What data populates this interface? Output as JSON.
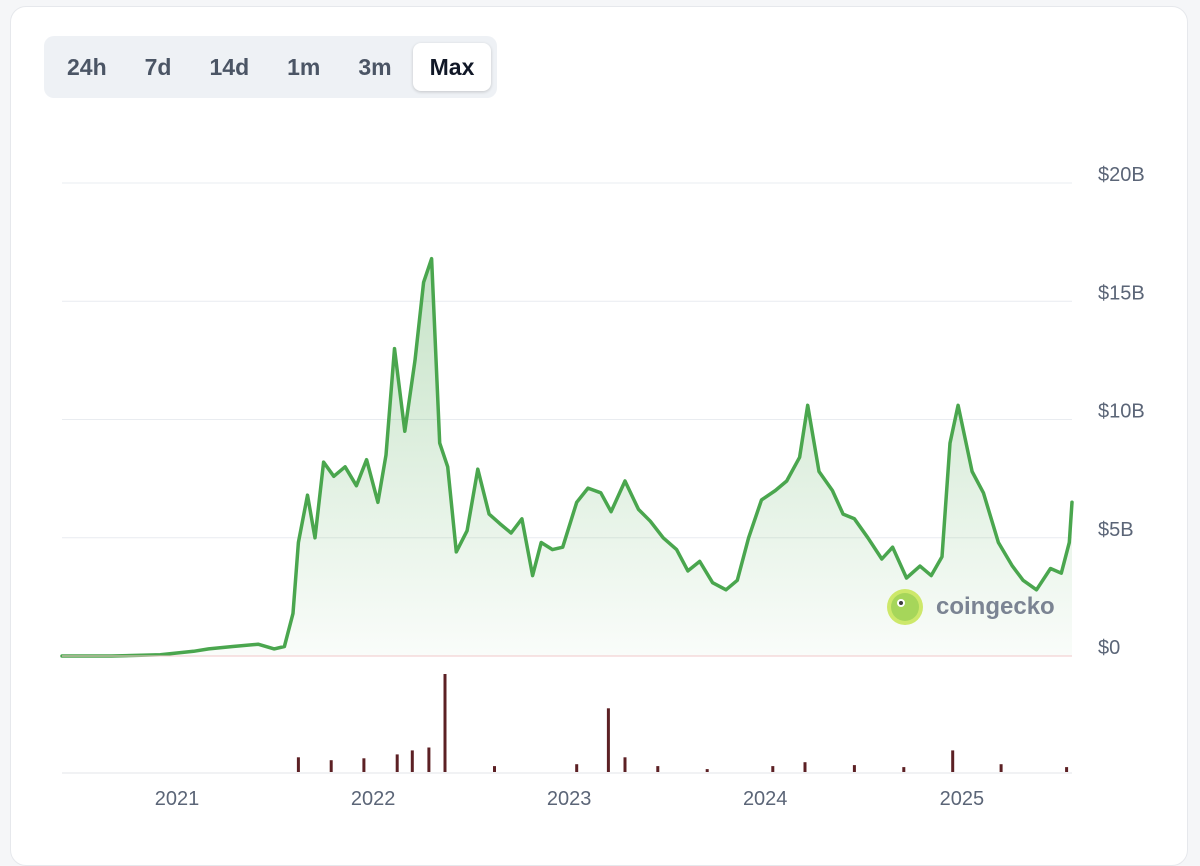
{
  "range_tabs": [
    {
      "label": "24h",
      "active": false
    },
    {
      "label": "7d",
      "active": false
    },
    {
      "label": "14d",
      "active": false
    },
    {
      "label": "1m",
      "active": false
    },
    {
      "label": "3m",
      "active": false
    },
    {
      "label": "Max",
      "active": true
    }
  ],
  "watermark": {
    "text": "coingecko"
  },
  "colors": {
    "line": "#4aa64e",
    "volume": "#5c2024",
    "grid": "#e9ecf0",
    "axis_text": "#5b6577"
  },
  "chart_data": {
    "type": "area",
    "title": "",
    "xlabel": "",
    "ylabel": "",
    "y_ticks": [
      "$0",
      "$5B",
      "$10B",
      "$15B",
      "$20B"
    ],
    "x_ticks": [
      "2021",
      "2022",
      "2023",
      "2024",
      "2025"
    ],
    "ylim": [
      0,
      20
    ],
    "y_unit": "billion USD",
    "grid": true,
    "series": [
      {
        "x": [
          "2020-06-01",
          "2020-09-01",
          "2020-12-01",
          "2021-02-01",
          "2021-03-01",
          "2021-04-15",
          "2021-06-01",
          "2021-07-01",
          "2021-07-20",
          "2021-08-05",
          "2021-08-15",
          "2021-09-01",
          "2021-09-15",
          "2021-10-01",
          "2021-10-20",
          "2021-11-10",
          "2021-12-01",
          "2021-12-20",
          "2022-01-10",
          "2022-01-25",
          "2022-02-10",
          "2022-03-01",
          "2022-03-20",
          "2022-04-05",
          "2022-04-20",
          "2022-05-05",
          "2022-05-20",
          "2022-06-05",
          "2022-06-25",
          "2022-07-15",
          "2022-08-05",
          "2022-08-25",
          "2022-09-15",
          "2022-10-05",
          "2022-10-25",
          "2022-11-10",
          "2022-12-01",
          "2022-12-20",
          "2023-01-15",
          "2023-02-05",
          "2023-03-01",
          "2023-03-20",
          "2023-04-15",
          "2023-05-10",
          "2023-06-01",
          "2023-06-25",
          "2023-07-20",
          "2023-08-10",
          "2023-09-01",
          "2023-09-25",
          "2023-10-20",
          "2023-11-10",
          "2023-12-01",
          "2023-12-25",
          "2024-01-20",
          "2024-02-10",
          "2024-03-05",
          "2024-03-20",
          "2024-04-10",
          "2024-05-05",
          "2024-05-25",
          "2024-06-15",
          "2024-07-10",
          "2024-08-05",
          "2024-08-25",
          "2024-09-20",
          "2024-10-15",
          "2024-11-05",
          "2024-11-25",
          "2024-12-10",
          "2024-12-25",
          "2025-01-20",
          "2025-02-10",
          "2025-03-10",
          "2025-04-05",
          "2025-04-25",
          "2025-05-20",
          "2025-06-15",
          "2025-07-05",
          "2025-07-20",
          "2025-07-25"
        ],
        "y": [
          0.0,
          0.0,
          0.05,
          0.2,
          0.3,
          0.4,
          0.5,
          0.3,
          0.4,
          1.8,
          4.8,
          6.8,
          5.0,
          8.2,
          7.6,
          8.0,
          7.2,
          8.3,
          6.5,
          8.5,
          13.0,
          9.5,
          12.5,
          15.8,
          16.8,
          9.0,
          8.0,
          4.4,
          5.3,
          7.9,
          6.0,
          5.6,
          5.2,
          5.8,
          3.4,
          4.8,
          4.5,
          4.6,
          6.5,
          7.1,
          6.9,
          6.1,
          7.4,
          6.2,
          5.7,
          5.0,
          4.5,
          3.6,
          4.0,
          3.1,
          2.8,
          3.2,
          5.0,
          6.6,
          7.0,
          7.4,
          8.4,
          10.6,
          7.8,
          7.0,
          6.0,
          5.8,
          5.0,
          4.1,
          4.6,
          3.3,
          3.8,
          3.4,
          4.2,
          9.0,
          10.6,
          7.8,
          6.9,
          4.8,
          3.8,
          3.2,
          2.8,
          3.7,
          3.5,
          4.8,
          6.5
        ]
      }
    ],
    "volume": {
      "x": [
        "2021-08",
        "2021-10",
        "2021-12",
        "2022-02",
        "2022-03",
        "2022-04",
        "2022-05",
        "2022-08",
        "2023-01",
        "2023-03",
        "2023-04",
        "2023-06",
        "2023-09",
        "2024-01",
        "2024-03",
        "2024-06",
        "2024-09",
        "2024-12",
        "2025-03",
        "2025-07"
      ],
      "relative": [
        0.15,
        0.12,
        0.14,
        0.18,
        0.22,
        0.25,
        1.0,
        0.06,
        0.08,
        0.65,
        0.15,
        0.06,
        0.03,
        0.06,
        0.1,
        0.07,
        0.05,
        0.22,
        0.08,
        0.05
      ]
    }
  }
}
